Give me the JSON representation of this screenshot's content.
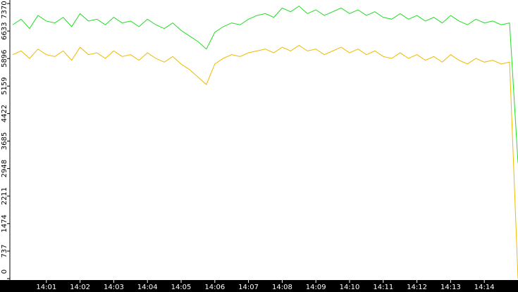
{
  "chart_data": {
    "type": "line",
    "categories": [
      null,
      null,
      null,
      null,
      "14:01",
      null,
      null,
      null,
      "14:02",
      null,
      null,
      null,
      "14:03",
      null,
      null,
      null,
      "14:04",
      null,
      null,
      null,
      "14:05",
      null,
      null,
      null,
      "14:06",
      null,
      null,
      null,
      "14:07",
      null,
      null,
      null,
      "14:08",
      null,
      null,
      null,
      "14:09",
      null,
      null,
      null,
      "14:10",
      null,
      null,
      null,
      "14:11",
      null,
      null,
      null,
      "14:12",
      null,
      null,
      null,
      "14:13",
      null,
      null,
      null,
      "14:14",
      null,
      null,
      null,
      null
    ],
    "series": [
      {
        "color": "#22dd22",
        "values": [
          6800,
          6950,
          6700,
          7050,
          6900,
          6850,
          7000,
          6750,
          7100,
          6900,
          6950,
          6800,
          7000,
          6850,
          6900,
          6750,
          6950,
          6800,
          6700,
          6850,
          6650,
          6500,
          6350,
          6150,
          6600,
          6750,
          6850,
          6800,
          6950,
          7050,
          7100,
          7000,
          7250,
          7150,
          7300,
          7100,
          7200,
          7050,
          7150,
          7250,
          7100,
          7200,
          7050,
          7150,
          7000,
          6950,
          7100,
          6950,
          7050,
          6900,
          7000,
          6850,
          7050,
          6900,
          6800,
          6950,
          6850,
          6900,
          6800,
          6850,
          3100
        ]
      },
      {
        "color": "#eebb00",
        "values": [
          6000,
          6100,
          5900,
          6150,
          6000,
          5950,
          6100,
          5850,
          6200,
          6000,
          6050,
          5900,
          6100,
          5950,
          6000,
          5850,
          6050,
          5900,
          5800,
          5950,
          5750,
          5600,
          5400,
          5200,
          5750,
          5900,
          6000,
          5950,
          6050,
          6100,
          6150,
          6050,
          6200,
          6100,
          6250,
          6100,
          6150,
          6000,
          6100,
          6200,
          6050,
          6150,
          6000,
          6100,
          5950,
          5900,
          6050,
          5900,
          6000,
          5850,
          5950,
          5800,
          6000,
          5850,
          5750,
          5900,
          5800,
          5850,
          5750,
          5800,
          0
        ]
      }
    ],
    "ylim": [
      0,
      7370
    ],
    "yticks": [
      0,
      737,
      1474,
      2211,
      2948,
      3685,
      4422,
      5159,
      5896,
      6633,
      7370
    ]
  }
}
